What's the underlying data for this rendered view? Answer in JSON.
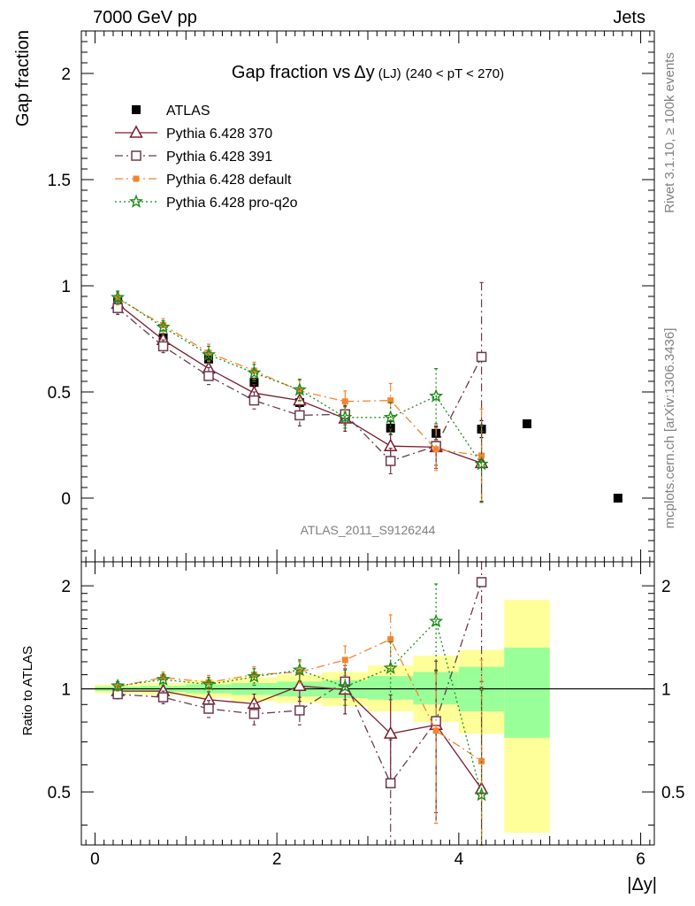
{
  "header": {
    "energy_label": "7000 GeV pp",
    "process_label": "Jets",
    "rivet_label": "Rivet 3.1.10, ≥ 100k events",
    "mcplots_label": "mcplots.cern.ch [arXiv:1306.3436]",
    "analysis_label": "ATLAS_2011_S9126244"
  },
  "chart_data": [
    {
      "panel": "main",
      "type": "scatter",
      "title_main": "Gap fraction vs",
      "title_delta": "Δy",
      "title_suffix": "(LJ)",
      "title_range": "(240 < pT < 270)",
      "ylabel": "Gap fraction",
      "xlabel": "|Δy|",
      "xlim": [
        -0.15,
        6.15
      ],
      "ylim": [
        -0.3,
        2.2
      ],
      "x_ticks": [
        "0",
        "2",
        "4",
        "6"
      ],
      "y_ticks": [
        "0",
        "0.5",
        "1",
        "1.5",
        "2"
      ],
      "legend_position": "top-left",
      "series": [
        {
          "name": "ATLAS",
          "color": "#000000",
          "marker": "square",
          "line": "none",
          "x": [
            0.25,
            0.75,
            1.25,
            1.75,
            2.25,
            2.75,
            3.25,
            3.75,
            4.25,
            4.75,
            5.75
          ],
          "y": [
            0.925,
            0.755,
            0.655,
            0.545,
            0.45,
            0.375,
            0.33,
            0.305,
            0.325,
            0.35,
            0.0
          ],
          "err": [
            0.02,
            0.02,
            0.02,
            0.02,
            0.02,
            0.02,
            0.03,
            0.03,
            0.04,
            0.0,
            0.0
          ]
        },
        {
          "name": "Pythia 6.428 370",
          "color": "#7b1c2e",
          "marker": "triangle-open",
          "line": "solid",
          "x": [
            0.25,
            0.75,
            1.25,
            1.75,
            2.25,
            2.75,
            3.25,
            3.75,
            4.25
          ],
          "y": [
            0.915,
            0.745,
            0.61,
            0.495,
            0.46,
            0.375,
            0.245,
            0.24,
            0.165
          ],
          "err": [
            0.03,
            0.03,
            0.04,
            0.04,
            0.05,
            0.06,
            0.08,
            0.1,
            0.18
          ]
        },
        {
          "name": "Pythia 6.428 391",
          "color": "#6b3a4f",
          "marker": "square-open",
          "line": "dashdot",
          "x": [
            0.25,
            0.75,
            1.25,
            1.75,
            2.25,
            2.75,
            3.25,
            3.75,
            4.25
          ],
          "y": [
            0.895,
            0.715,
            0.575,
            0.46,
            0.39,
            0.395,
            0.175,
            0.245,
            0.665
          ],
          "err": [
            0.03,
            0.03,
            0.04,
            0.04,
            0.05,
            0.05,
            0.06,
            0.09,
            0.35
          ]
        },
        {
          "name": "Pythia 6.428 default",
          "color": "#f5842f",
          "marker": "square-filled",
          "line": "dashdot",
          "x": [
            0.25,
            0.75,
            1.25,
            1.75,
            2.25,
            2.75,
            3.25,
            3.75,
            4.25
          ],
          "y": [
            0.94,
            0.815,
            0.685,
            0.6,
            0.505,
            0.455,
            0.46,
            0.23,
            0.2
          ],
          "err": [
            0.03,
            0.03,
            0.04,
            0.04,
            0.05,
            0.05,
            0.08,
            0.1,
            0.22
          ]
        },
        {
          "name": "Pythia 6.428 pro-q2o",
          "color": "#1a8c1a",
          "marker": "star",
          "line": "dotted",
          "x": [
            0.25,
            0.75,
            1.25,
            1.75,
            2.25,
            2.75,
            3.25,
            3.75,
            4.25
          ],
          "y": [
            0.945,
            0.805,
            0.675,
            0.59,
            0.51,
            0.38,
            0.38,
            0.48,
            0.16
          ],
          "err": [
            0.03,
            0.03,
            0.04,
            0.04,
            0.05,
            0.05,
            0.07,
            0.13,
            0.18
          ]
        }
      ]
    },
    {
      "panel": "ratio",
      "type": "scatter",
      "ylabel": "Ratio to ATLAS",
      "xlim": [
        -0.15,
        6.15
      ],
      "ylim": [
        0.35,
        2.35
      ],
      "y_scale": "log",
      "y_ticks": [
        "0.5",
        "1",
        "2"
      ],
      "reference_line": 1.0,
      "uncertainty_bands": [
        {
          "x_low": 0.0,
          "x_high": 0.5,
          "green": [
            0.985,
            1.015
          ],
          "yellow": [
            0.97,
            1.03
          ]
        },
        {
          "x_low": 0.5,
          "x_high": 1.0,
          "green": [
            0.98,
            1.02
          ],
          "yellow": [
            0.96,
            1.04
          ]
        },
        {
          "x_low": 1.0,
          "x_high": 1.5,
          "green": [
            0.97,
            1.03
          ],
          "yellow": [
            0.94,
            1.06
          ]
        },
        {
          "x_low": 1.5,
          "x_high": 2.0,
          "green": [
            0.96,
            1.04
          ],
          "yellow": [
            0.92,
            1.08
          ]
        },
        {
          "x_low": 2.0,
          "x_high": 2.5,
          "green": [
            0.95,
            1.05
          ],
          "yellow": [
            0.91,
            1.1
          ]
        },
        {
          "x_low": 2.5,
          "x_high": 3.0,
          "green": [
            0.94,
            1.06
          ],
          "yellow": [
            0.89,
            1.12
          ]
        },
        {
          "x_low": 3.0,
          "x_high": 3.5,
          "green": [
            0.93,
            1.09
          ],
          "yellow": [
            0.86,
            1.17
          ]
        },
        {
          "x_low": 3.5,
          "x_high": 4.0,
          "green": [
            0.9,
            1.12
          ],
          "yellow": [
            0.8,
            1.25
          ]
        },
        {
          "x_low": 4.0,
          "x_high": 4.5,
          "green": [
            0.86,
            1.16
          ],
          "yellow": [
            0.74,
            1.3
          ]
        },
        {
          "x_low": 4.5,
          "x_high": 5.0,
          "green": [
            0.72,
            1.32
          ],
          "yellow": [
            0.38,
            1.82
          ]
        }
      ],
      "series": [
        {
          "name": "Pythia 6.428 370",
          "y": [
            0.985,
            0.985,
            0.93,
            0.905,
            1.02,
            0.995,
            0.74,
            0.785,
            0.51
          ],
          "err": [
            0.03,
            0.04,
            0.05,
            0.06,
            0.1,
            0.15,
            0.22,
            0.35,
            0.5
          ]
        },
        {
          "name": "Pythia 6.428 391",
          "y": [
            0.965,
            0.945,
            0.875,
            0.845,
            0.865,
            1.05,
            0.53,
            0.805,
            2.05
          ],
          "err": [
            0.03,
            0.04,
            0.05,
            0.06,
            0.08,
            0.12,
            0.18,
            0.4,
            1.0
          ]
        },
        {
          "name": "Pythia 6.428 default",
          "y": [
            1.015,
            1.08,
            1.045,
            1.1,
            1.12,
            1.215,
            1.395,
            0.755,
            0.615
          ],
          "err": [
            0.03,
            0.04,
            0.05,
            0.06,
            0.08,
            0.12,
            0.25,
            0.35,
            0.6
          ]
        },
        {
          "name": "Pythia 6.428 pro-q2o",
          "y": [
            1.02,
            1.065,
            1.03,
            1.085,
            1.135,
            1.015,
            1.15,
            1.575,
            0.49
          ],
          "err": [
            0.03,
            0.04,
            0.05,
            0.06,
            0.08,
            0.12,
            0.22,
            0.45,
            0.5
          ]
        }
      ]
    }
  ]
}
